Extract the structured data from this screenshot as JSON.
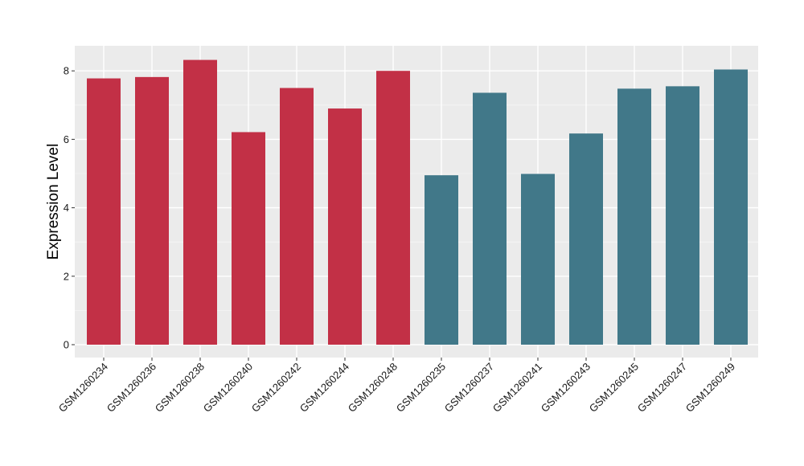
{
  "chart_data": {
    "type": "bar",
    "title": "",
    "xlabel": "",
    "ylabel": "Expression Level",
    "ylim": [
      0,
      8.7
    ],
    "yticks": [
      0,
      2,
      4,
      6,
      8
    ],
    "grid": true,
    "categories": [
      "GSM1260234",
      "GSM1260236",
      "GSM1260238",
      "GSM1260240",
      "GSM1260242",
      "GSM1260244",
      "GSM1260248",
      "GSM1260235",
      "GSM1260237",
      "GSM1260241",
      "GSM1260243",
      "GSM1260245",
      "GSM1260247",
      "GSM1260249"
    ],
    "values": [
      7.78,
      7.82,
      8.32,
      6.21,
      7.5,
      6.9,
      8.0,
      4.95,
      7.36,
      4.99,
      6.17,
      7.48,
      7.55,
      8.04
    ],
    "groups": [
      0,
      0,
      0,
      0,
      0,
      0,
      0,
      1,
      1,
      1,
      1,
      1,
      1,
      1
    ],
    "colors": [
      "#c23046",
      "#417889"
    ]
  }
}
